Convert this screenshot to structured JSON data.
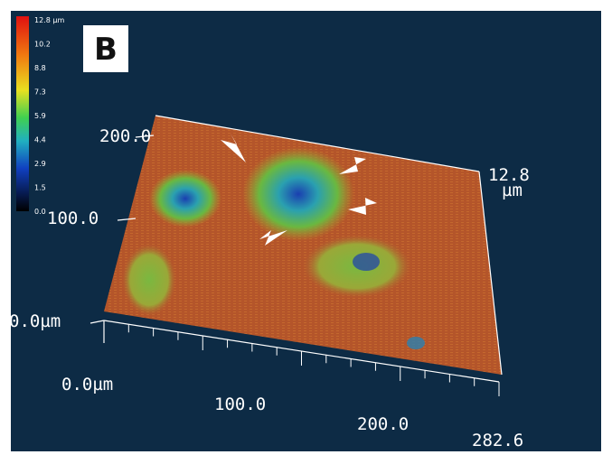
{
  "panel_label": "B",
  "colorbar": {
    "labels": [
      "12.8 µm",
      "10.2",
      "8.8",
      "7.3",
      "5.9",
      "4.4",
      "2.9",
      "1.5",
      "0.0"
    ]
  },
  "axes": {
    "y_labels": [
      "200.0",
      "100.0",
      "0.0µm"
    ],
    "x_labels": [
      "0.0µm",
      "100.0",
      "200.0",
      "282.6"
    ],
    "z_label": "12.8",
    "z_unit": "µm"
  }
}
